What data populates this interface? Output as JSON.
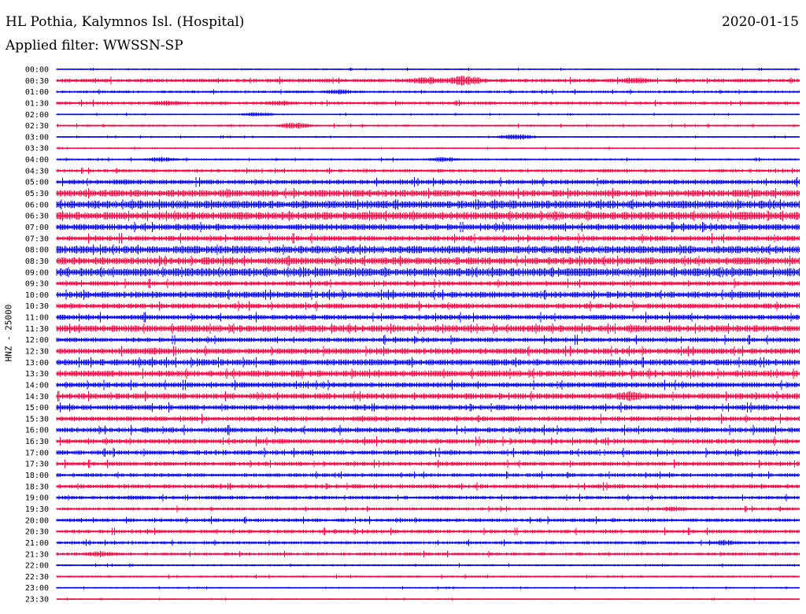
{
  "header": {
    "station": "HL Pothia, Kalymnos Isl. (Hospital)",
    "date": "2020-01-15",
    "filter_label": "Applied filter:",
    "filter_value": "WWSSN-SP",
    "channel": "HNZ - 25000"
  },
  "colors": {
    "even_rows": "#0000ff",
    "odd_rows": "#ff0040"
  },
  "chart_data": {
    "type": "line",
    "title": "HL Pothia, Kalymnos Isl. (Hospital)",
    "date": "2020-01-15",
    "filter": "WWSSN-SP",
    "ylabel": "HNZ - 25000",
    "row_minutes": 30,
    "trace_labels": [
      "00:00",
      "00:30",
      "01:00",
      "01:30",
      "02:00",
      "02:30",
      "03:00",
      "03:30",
      "04:00",
      "04:30",
      "05:00",
      "05:30",
      "06:00",
      "06:30",
      "07:00",
      "07:30",
      "08:00",
      "08:30",
      "09:00",
      "09:30",
      "10:00",
      "10:30",
      "11:00",
      "11:30",
      "12:00",
      "12:30",
      "13:00",
      "13:30",
      "14:00",
      "14:30",
      "15:00",
      "15:30",
      "16:00",
      "16:30",
      "17:00",
      "17:30",
      "18:00",
      "18:30",
      "19:00",
      "19:30",
      "20:00",
      "20:30",
      "21:00",
      "21:30",
      "22:00",
      "22:30",
      "23:00",
      "23:30"
    ],
    "noise_level": [
      0.15,
      0.35,
      0.25,
      0.3,
      0.15,
      0.2,
      0.15,
      0.15,
      0.2,
      0.3,
      0.45,
      0.65,
      0.75,
      0.75,
      0.6,
      0.5,
      0.75,
      0.7,
      0.8,
      0.45,
      0.6,
      0.5,
      0.5,
      0.65,
      0.45,
      0.55,
      0.6,
      0.6,
      0.5,
      0.55,
      0.5,
      0.45,
      0.5,
      0.45,
      0.45,
      0.4,
      0.35,
      0.4,
      0.35,
      0.3,
      0.35,
      0.35,
      0.3,
      0.3,
      0.2,
      0.2,
      0.15,
      0.12
    ],
    "bursts": [
      [
        1,
        0.5,
        0.75,
        0.06
      ],
      [
        1,
        0.55,
        1.0,
        0.06
      ],
      [
        1,
        0.78,
        0.7,
        0.05
      ],
      [
        2,
        0.38,
        0.5,
        0.05
      ],
      [
        2,
        0.32,
        0.25,
        0.08
      ],
      [
        3,
        0.15,
        0.5,
        0.06
      ],
      [
        3,
        0.3,
        0.5,
        0.05
      ],
      [
        4,
        0.27,
        0.45,
        0.05
      ],
      [
        5,
        0.32,
        0.65,
        0.05
      ],
      [
        6,
        0.62,
        0.5,
        0.06
      ],
      [
        8,
        0.14,
        0.5,
        0.05
      ],
      [
        8,
        0.52,
        0.5,
        0.05
      ],
      [
        9,
        0.74,
        0.35,
        0.05
      ],
      [
        10,
        0.09,
        0.55,
        0.05
      ],
      [
        11,
        0.68,
        0.35,
        0.07
      ],
      [
        12,
        0.56,
        0.5,
        0.06
      ],
      [
        12,
        0.62,
        0.45,
        0.06
      ],
      [
        13,
        0.59,
        0.6,
        0.07
      ],
      [
        13,
        0.93,
        0.9,
        0.05
      ],
      [
        13,
        0.76,
        0.5,
        0.05
      ],
      [
        16,
        0.1,
        0.45,
        0.06
      ],
      [
        16,
        0.5,
        0.45,
        0.08
      ],
      [
        16,
        0.6,
        0.6,
        0.06
      ],
      [
        16,
        0.72,
        0.5,
        0.05
      ],
      [
        16,
        0.89,
        0.55,
        0.05
      ],
      [
        18,
        0.09,
        0.45,
        0.05
      ],
      [
        18,
        0.2,
        0.6,
        0.06
      ],
      [
        18,
        0.61,
        0.5,
        0.05
      ],
      [
        18,
        0.71,
        0.85,
        0.06
      ],
      [
        20,
        0.31,
        0.55,
        0.05
      ],
      [
        20,
        0.93,
        0.6,
        0.05
      ],
      [
        21,
        0.86,
        0.5,
        0.05
      ],
      [
        23,
        0.82,
        0.55,
        0.06
      ],
      [
        23,
        0.3,
        0.4,
        0.05
      ],
      [
        25,
        0.13,
        0.7,
        0.06
      ],
      [
        25,
        0.87,
        0.6,
        0.05
      ],
      [
        26,
        0.2,
        0.65,
        0.06
      ],
      [
        26,
        0.58,
        0.55,
        0.07
      ],
      [
        26,
        0.94,
        0.55,
        0.05
      ],
      [
        27,
        0.52,
        0.6,
        0.05
      ],
      [
        27,
        0.06,
        0.6,
        0.06
      ],
      [
        28,
        0.74,
        0.6,
        0.05
      ],
      [
        29,
        0.77,
        0.9,
        0.05
      ],
      [
        29,
        0.53,
        0.45,
        0.06
      ],
      [
        31,
        0.42,
        0.5,
        0.05
      ],
      [
        33,
        0.3,
        0.5,
        0.05
      ],
      [
        34,
        0.49,
        0.45,
        0.04
      ],
      [
        39,
        0.83,
        0.5,
        0.05
      ],
      [
        38,
        0.11,
        0.45,
        0.06
      ],
      [
        38,
        0.22,
        0.45,
        0.05
      ],
      [
        42,
        0.9,
        0.55,
        0.05
      ],
      [
        43,
        0.06,
        0.55,
        0.06
      ],
      [
        44,
        0.49,
        0.2,
        0.06
      ]
    ]
  }
}
